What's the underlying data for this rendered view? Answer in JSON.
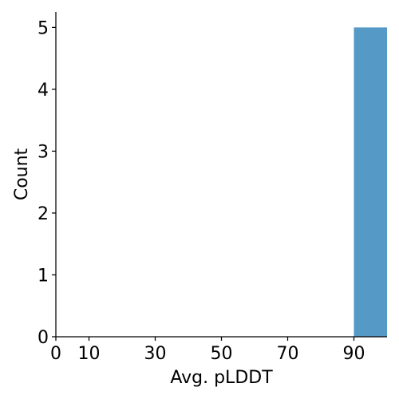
{
  "chart_data": {
    "type": "bar",
    "title": "",
    "xlabel": "Avg. pLDDT",
    "ylabel": "Count",
    "xlim": [
      0,
      100
    ],
    "ylim": [
      0,
      5.25
    ],
    "xticks": [
      0,
      10,
      30,
      50,
      70,
      90
    ],
    "yticks": [
      0,
      1,
      2,
      3,
      4,
      5
    ],
    "grid": false,
    "bins": [
      {
        "start": 90,
        "end": 100,
        "count": 5
      }
    ],
    "colors": {
      "bar": "#5599c7",
      "axis": "#000000"
    }
  }
}
